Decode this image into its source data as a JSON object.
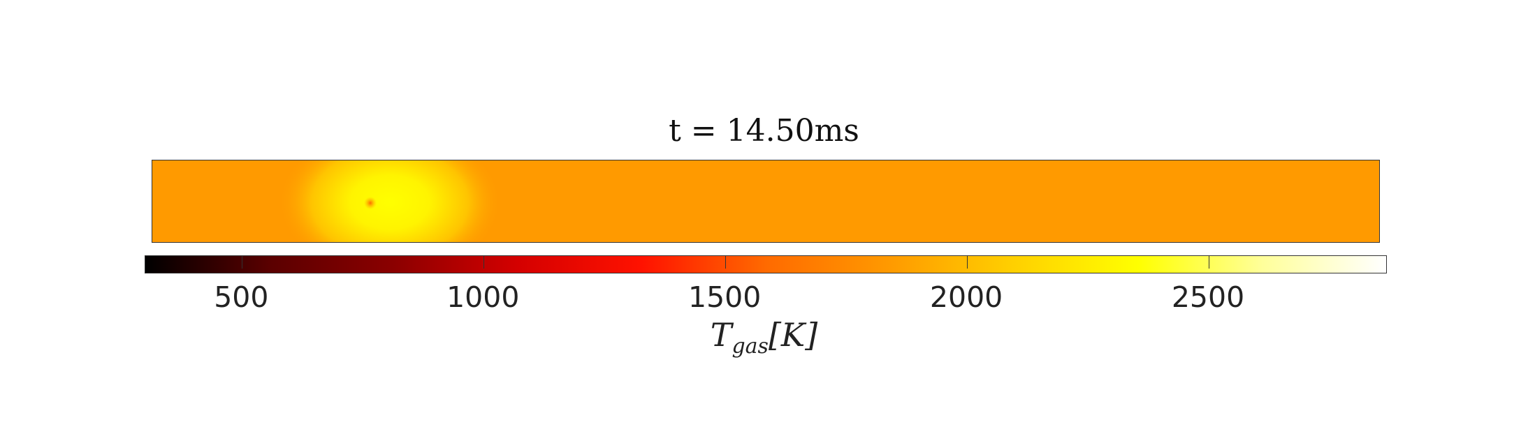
{
  "chart_data": {
    "type": "heatmap",
    "title": "t = 14.50ms",
    "colorbar": {
      "label_main": "T",
      "label_sub": "gas",
      "label_unit": "[K]",
      "range": [
        300,
        2870
      ],
      "ticks": [
        500,
        1000,
        1500,
        2000,
        2500
      ],
      "tick_labels": [
        "500",
        "1000",
        "1500",
        "2000",
        "2500"
      ],
      "colormap": "hot",
      "colormap_stops": [
        "#000000",
        "#5a0000",
        "#8b0000",
        "#d40000",
        "#ff1200",
        "#ff6a00",
        "#ff9a00",
        "#ffd000",
        "#ffff00",
        "#ffff9a",
        "#ffffff"
      ]
    },
    "field": {
      "background_temperature": 1870,
      "hot_spot_peak_temperature": 2220,
      "ignition_spot_temperature": 1680,
      "colors": {
        "background": "#ff9a00",
        "hot_core": "#ffff00",
        "spot": "#ff6a00"
      }
    }
  }
}
